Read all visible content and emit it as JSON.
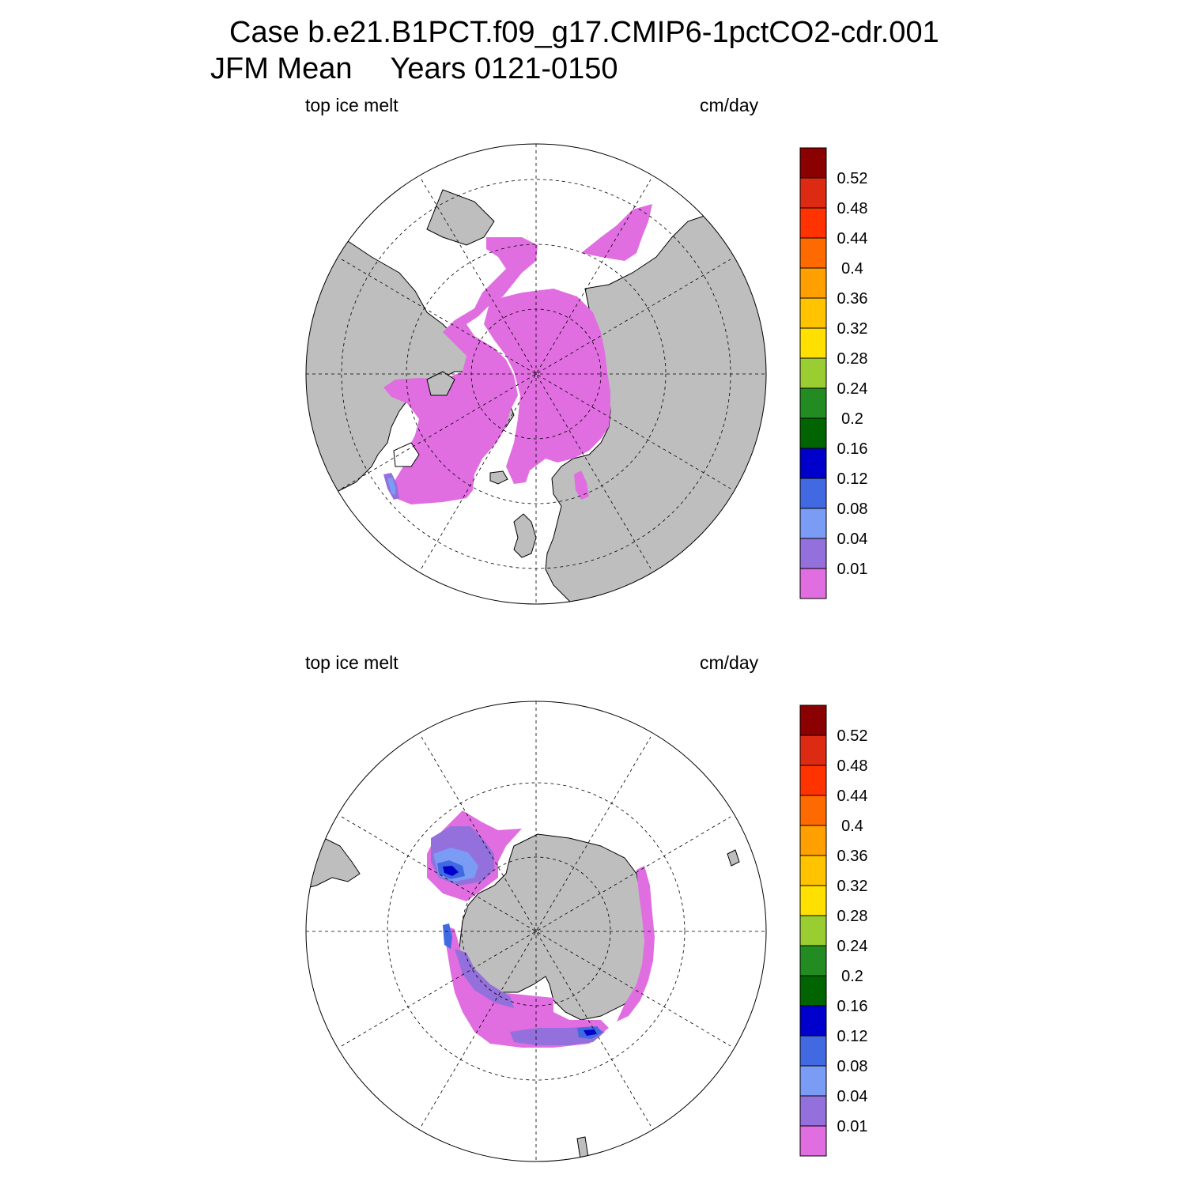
{
  "title": {
    "line1": "Case b.e21.B1PCT.f09_g17.CMIP6-1pctCO2-cdr.001",
    "line2_left": "JFM Mean",
    "line2_right": "Years 0121-0150"
  },
  "colors": {
    "land": "#bebebe",
    "ocean": "#ffffff",
    "coast": "#000000",
    "grid": "#000000"
  },
  "colorbar": {
    "colors": [
      "#e06ee0",
      "#9370db",
      "#7b9cf5",
      "#4169e1",
      "#0000cd",
      "#006400",
      "#228b22",
      "#9acd32",
      "#ffe000",
      "#ffc300",
      "#ffa000",
      "#ff6a00",
      "#ff3300",
      "#dd2a12",
      "#8b0000"
    ],
    "labels": [
      "0.01",
      "0.04",
      "0.08",
      "0.12",
      "0.16",
      "0.2",
      "0.24",
      "0.28",
      "0.32",
      "0.36",
      "0.4",
      "0.44",
      "0.48",
      "0.52"
    ]
  },
  "panels": [
    {
      "id": "north",
      "left_label": "top ice melt",
      "right_label": "cm/day"
    },
    {
      "id": "south",
      "left_label": "top ice melt",
      "right_label": "cm/day"
    }
  ]
}
